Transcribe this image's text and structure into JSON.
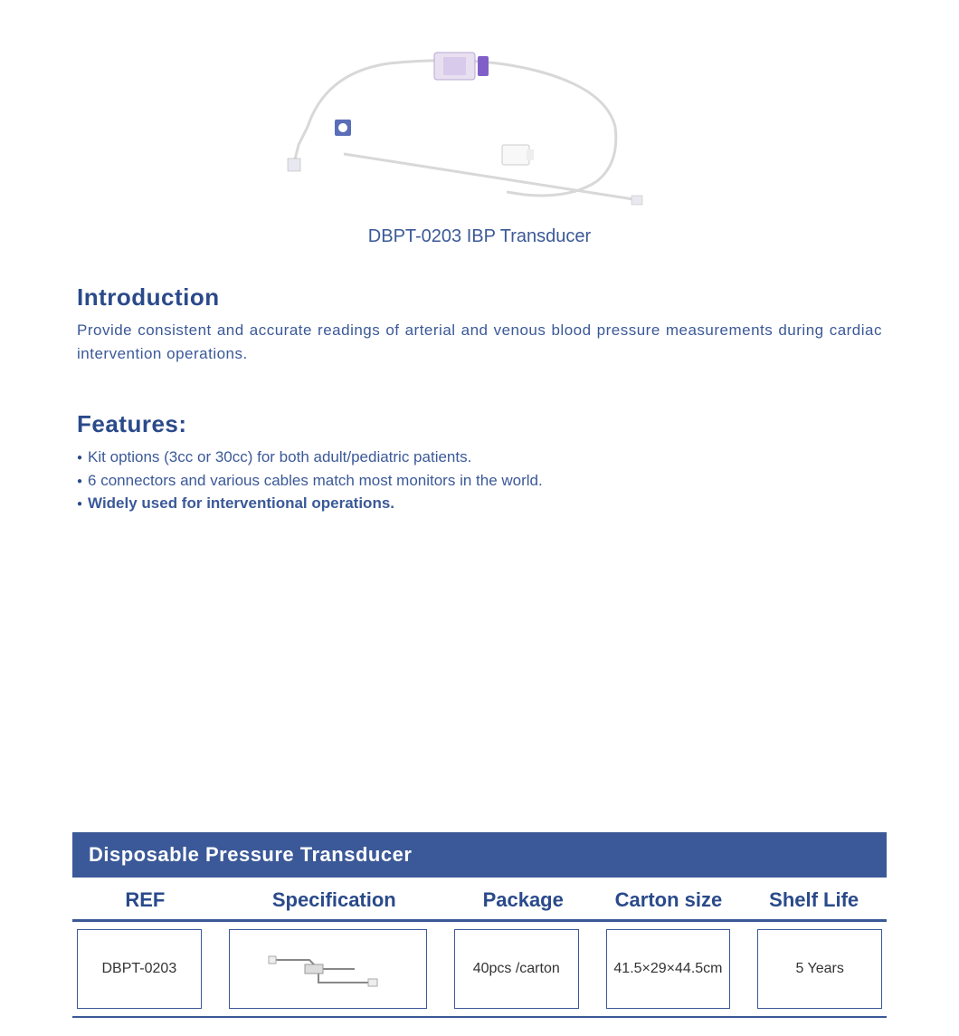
{
  "product": {
    "title": "DBPT-0203 IBP Transducer",
    "accent_color": "#3b5998",
    "tube_color": "#e8e8e8",
    "connector_color": "#5a6db8"
  },
  "introduction": {
    "heading": "Introduction",
    "text": "Provide consistent and accurate readings of arterial and venous blood pressure measurements during cardiac intervention operations."
  },
  "features": {
    "heading": "Features:",
    "items": [
      {
        "text": "Kit options (3cc or 30cc) for both adult/pediatric patients.",
        "bold": false
      },
      {
        "text": "6 connectors and various cables match most monitors in the world.",
        "bold": false
      },
      {
        "text": "Widely used for interventional operations.",
        "bold": true
      }
    ]
  },
  "table": {
    "title": "Disposable Pressure Transducer",
    "columns": [
      "REF",
      "Specification",
      "Package",
      "Carton  size",
      "Shelf Life"
    ],
    "rows": [
      {
        "ref": "DBPT-0203",
        "package": "40pcs /carton",
        "carton_size": "41.5×29×44.5cm",
        "shelf_life": "5 Years"
      }
    ],
    "header_bg": "#3b5998",
    "header_text_color": "#ffffff",
    "column_text_color": "#2a4a8a",
    "border_color": "#3b5998",
    "cell_text_color": "#333333"
  }
}
